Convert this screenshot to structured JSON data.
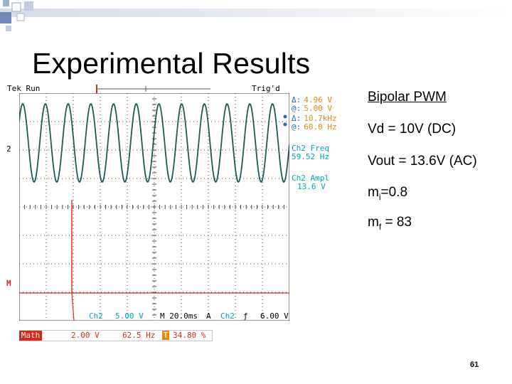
{
  "slide": {
    "title": "Experimental Results",
    "page_number": "61",
    "notes": {
      "line1": "Bipolar PWM",
      "line2": "Vd = 10V (DC)",
      "line3": "Vout = 13.6V (AC)",
      "mi_base": "m",
      "mi_sub": "i",
      "mi_value": "=0.8",
      "mf_base": "m",
      "mf_sub": "f",
      "mf_value": " = 83"
    }
  },
  "scope": {
    "status_left": "Tek Run",
    "status_right": "Trig'd",
    "delta_v_label": "Δ:",
    "delta_v": "4.96 V",
    "at_v_label": "@:",
    "at_v": "5.00 V",
    "delta_f_label": "Δ:",
    "delta_f": "10.7kHz",
    "at_f_label": "@:",
    "at_f": "60.0 Hz",
    "freq_label": "Ch2 Freq",
    "freq_value": "59.52 Hz",
    "ampl_label": "Ch2 Ampl",
    "ampl_value": "13.6 V",
    "ch2_marker": "2",
    "math_marker": "M",
    "bottom_ch": "Ch2",
    "bottom_scale": "5.00 V",
    "bottom_time": "M 20.0ms",
    "bottom_a": "A",
    "bottom_trig_ch": "Ch2",
    "bottom_trig_sym": "ƒ",
    "bottom_trig_level": "6.00 V",
    "math_label": "Math",
    "math_scale": "2.00 V",
    "math_freq": "62.5 Hz",
    "math_t_marker": "T",
    "math_pct": "34.80 %",
    "colors": {
      "trace": "#1b5a58",
      "math": "#d42a1a",
      "accent": "#e08a1a",
      "blue": "#2166c8",
      "cyan": "#00a6b8"
    }
  }
}
